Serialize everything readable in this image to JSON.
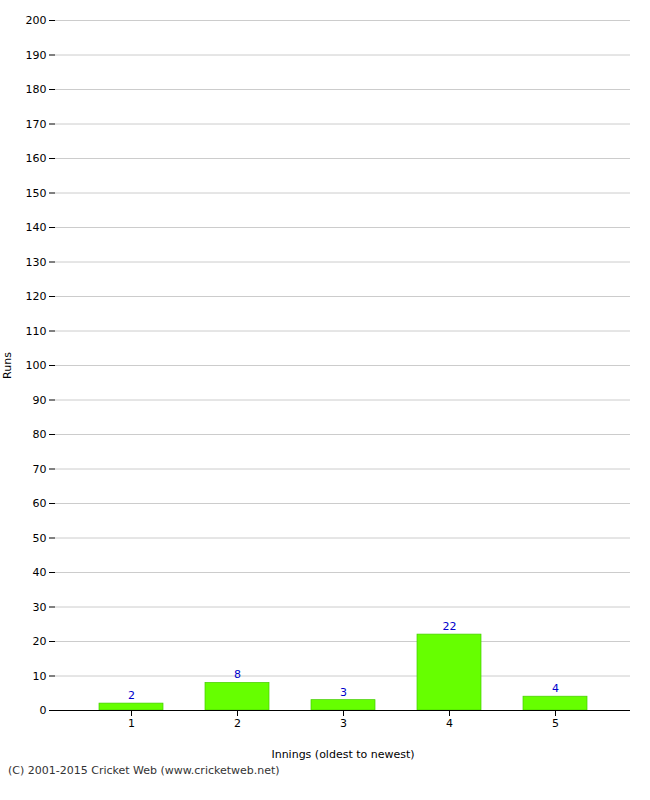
{
  "chart_data": {
    "type": "bar",
    "categories": [
      1,
      2,
      3,
      4,
      5
    ],
    "values": [
      2,
      8,
      3,
      22,
      4
    ],
    "color": "#66ff00",
    "xlabel": "Innings (oldest to newest)",
    "ylabel": "Runs",
    "ylim": [
      0,
      200
    ],
    "yticks": [
      0,
      10,
      20,
      30,
      40,
      50,
      60,
      70,
      80,
      90,
      100,
      110,
      120,
      130,
      140,
      150,
      160,
      170,
      180,
      190,
      200
    ],
    "grid": true,
    "data_labels": true,
    "caption": "(C) 2001-2015 Cricket Web (www.cricketweb.net)"
  }
}
